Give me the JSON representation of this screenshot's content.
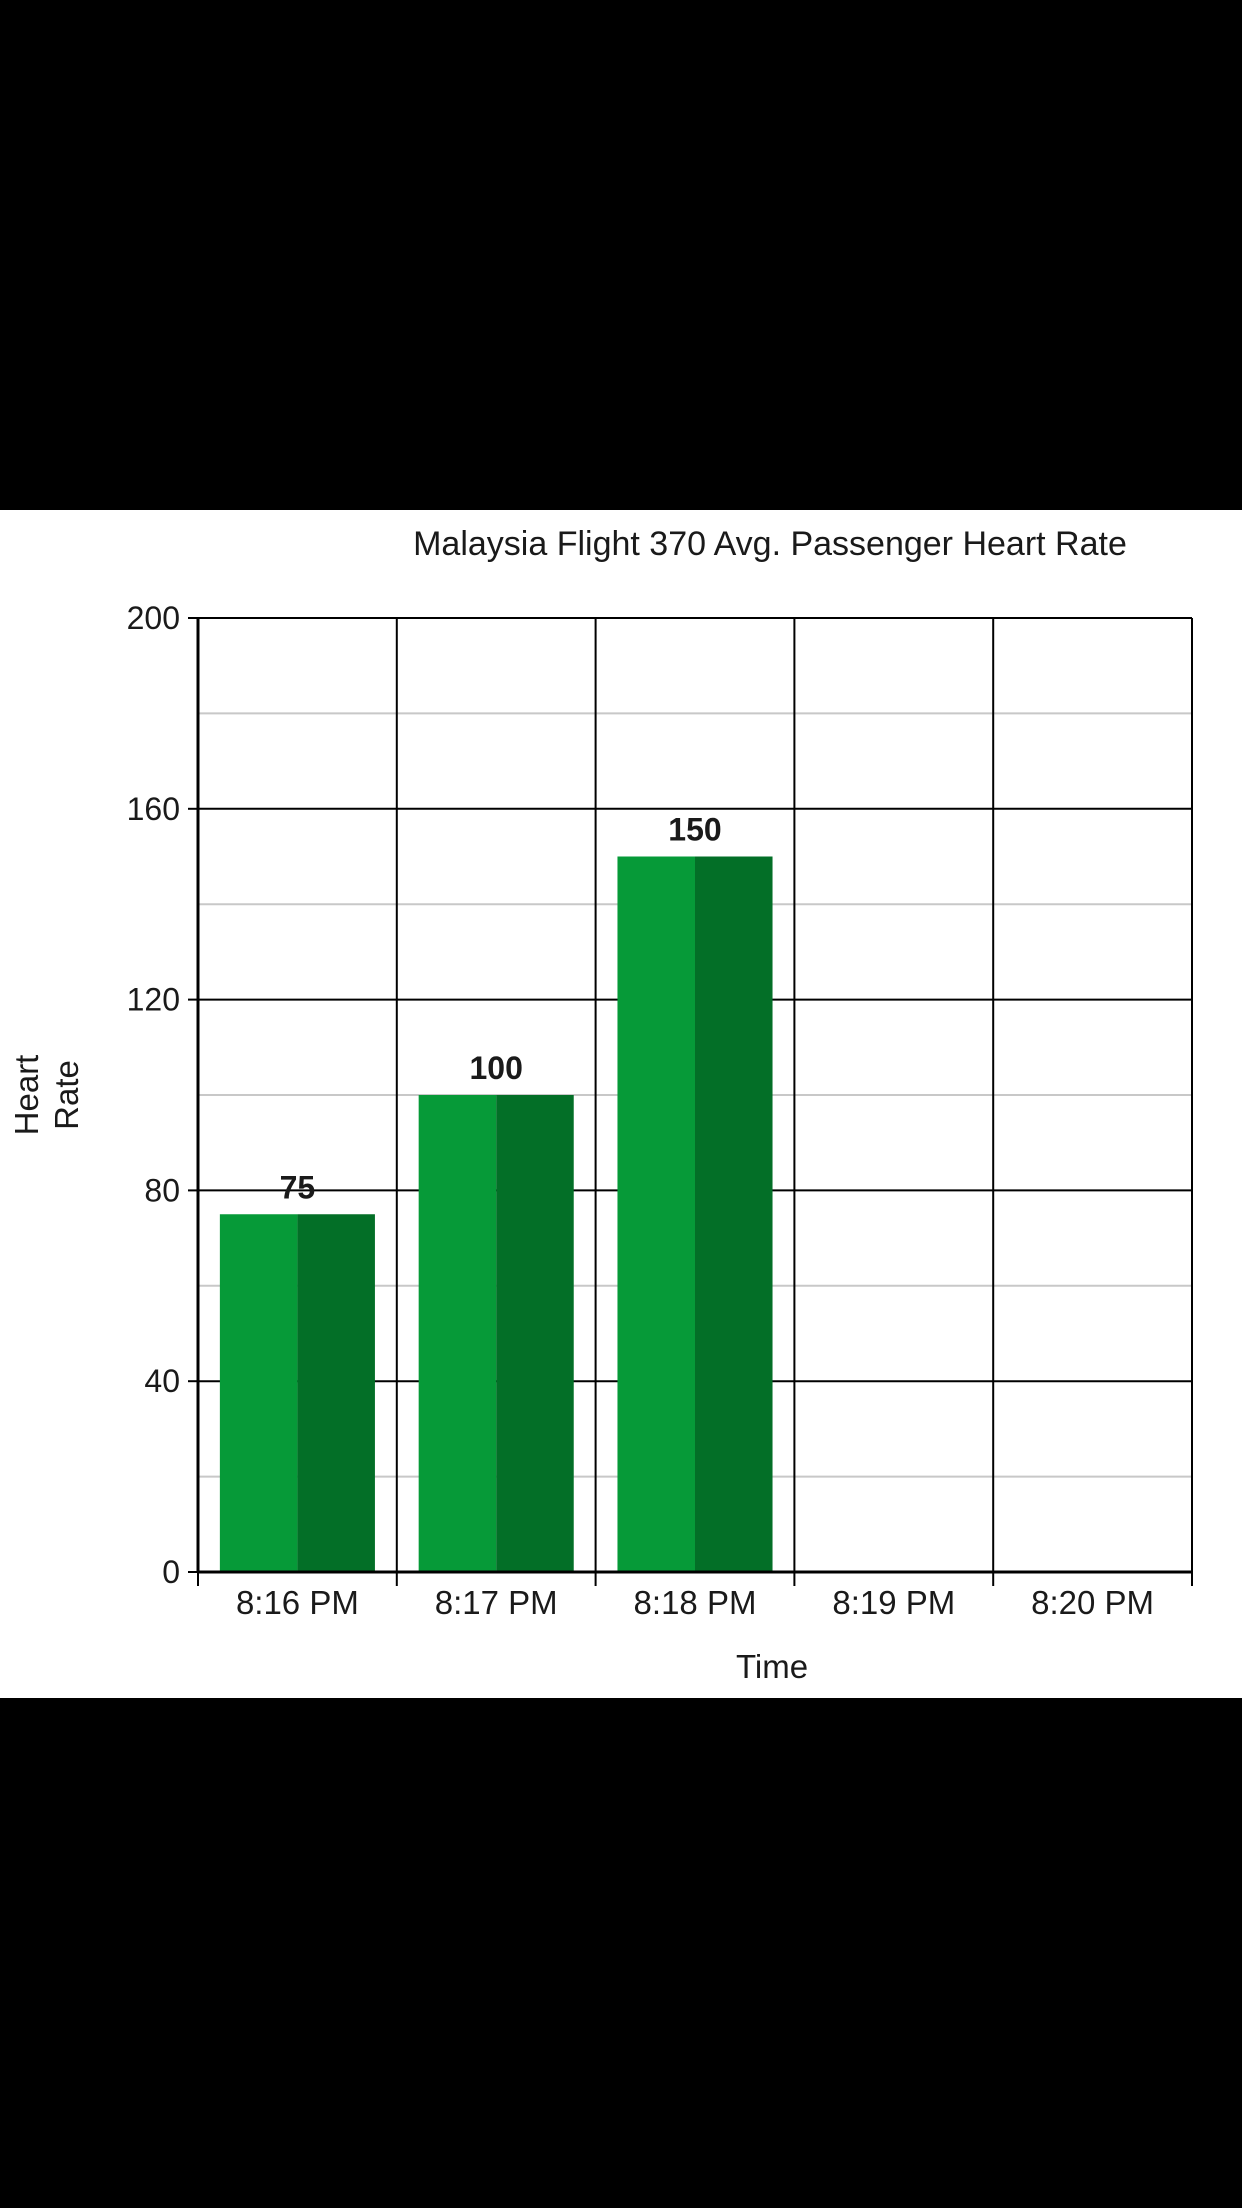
{
  "chart_data": {
    "type": "bar",
    "title": "Malaysia Flight 370 Avg. Passenger Heart Rate",
    "xlabel": "Time",
    "ylabel": [
      "Heart",
      "Rate"
    ],
    "categories": [
      "8:16 PM",
      "8:17 PM",
      "8:18 PM",
      "8:19 PM",
      "8:20 PM"
    ],
    "values": [
      75,
      100,
      150,
      null,
      null
    ],
    "data_labels": [
      "75",
      "100",
      "150",
      "",
      ""
    ],
    "ylim": [
      0,
      200
    ],
    "yticks": [
      0,
      40,
      80,
      120,
      160,
      200
    ],
    "grid": true,
    "colors": {
      "bar_light": "#069a38",
      "bar_dark": "#036f27",
      "grid_major": "#000000",
      "grid_minor": "#c8c8c8"
    }
  }
}
